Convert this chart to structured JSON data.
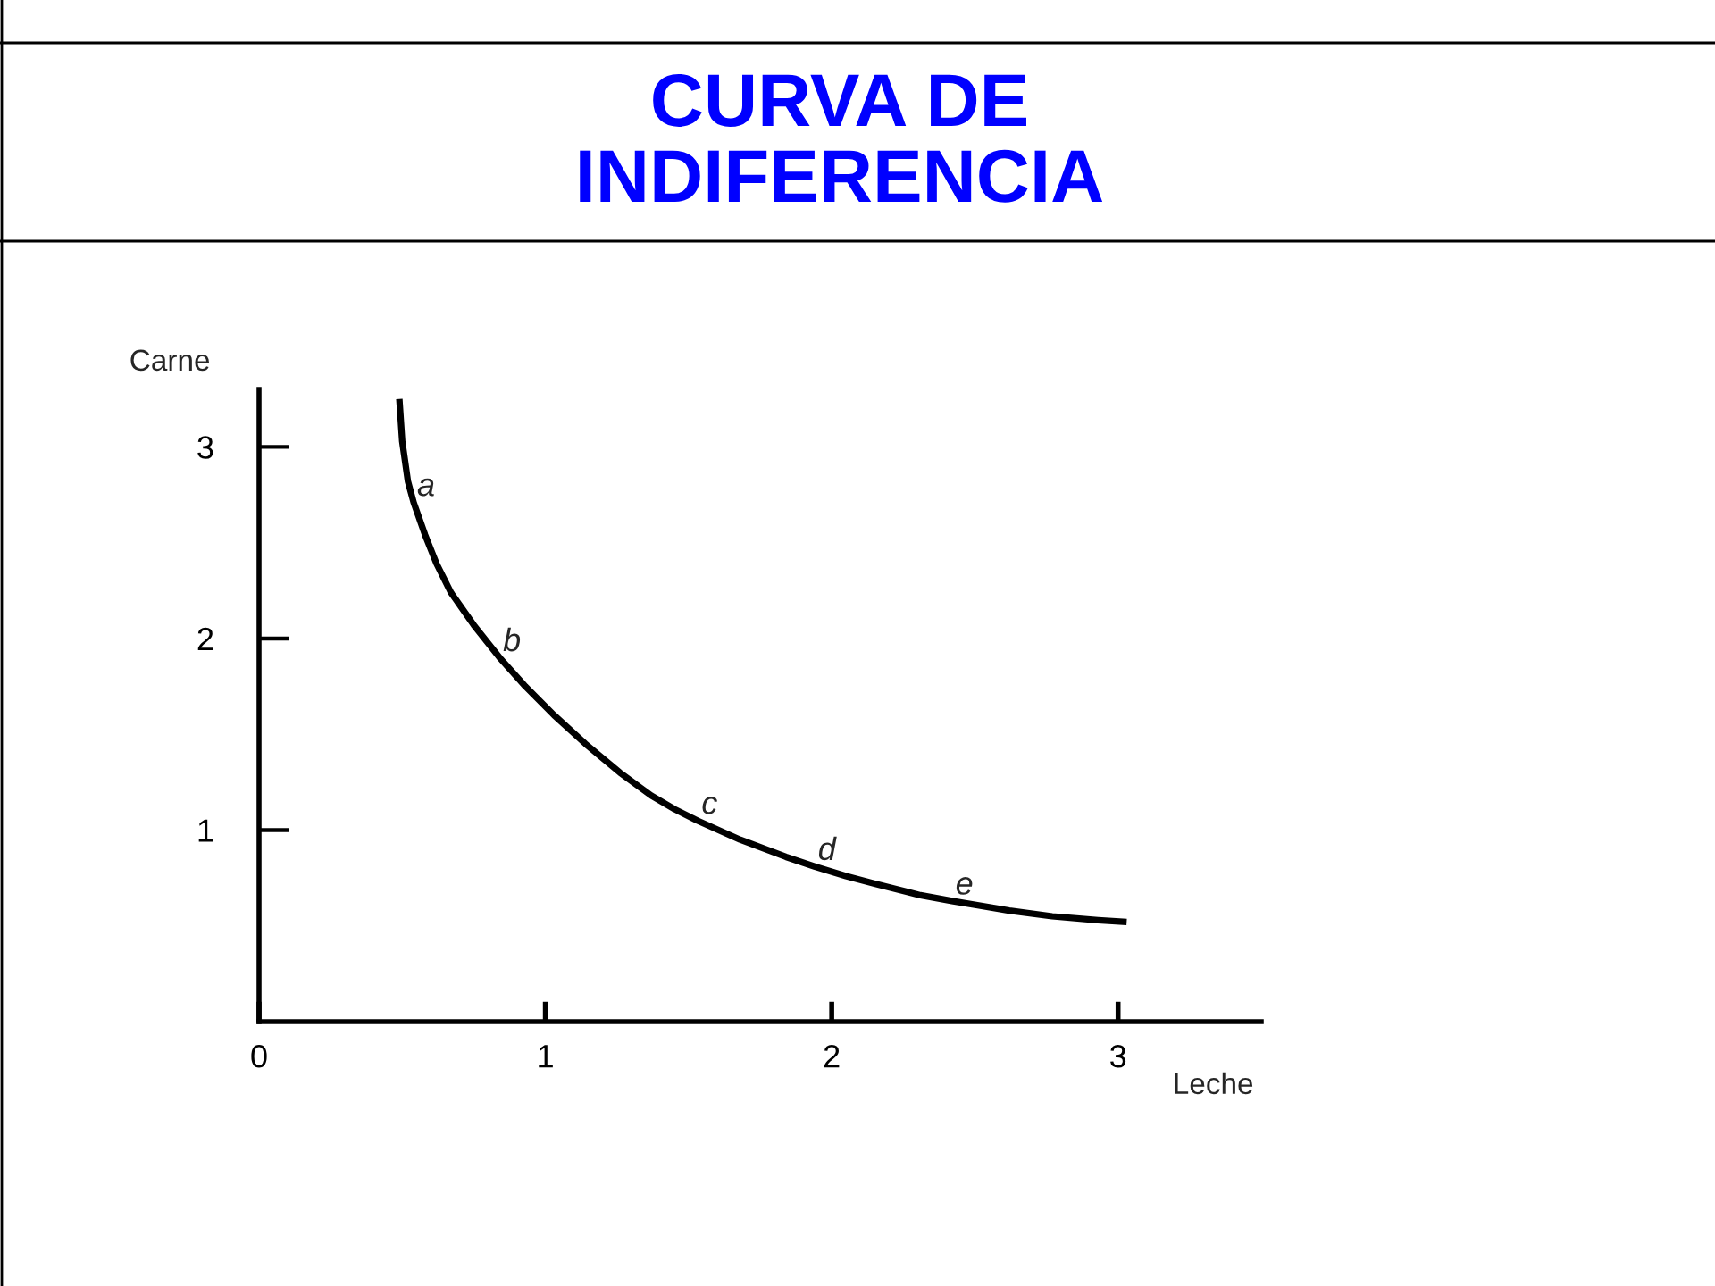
{
  "chart_data": {
    "type": "line",
    "title": "CURVA DE\nINDIFERENCIA",
    "xlabel": "Leche",
    "ylabel": "Carne",
    "x": [
      0.49,
      0.5,
      0.52,
      0.54,
      0.58,
      0.62,
      0.67,
      0.75,
      0.84,
      0.93,
      1.03,
      1.14,
      1.26,
      1.37,
      1.45,
      1.53,
      1.68,
      1.84,
      1.94,
      2.05,
      2.15,
      2.31,
      2.42,
      2.62,
      2.77,
      2.93,
      3.03
    ],
    "series": [
      {
        "color": "#000000",
        "values": [
          3.25,
          3.03,
          2.82,
          2.71,
          2.54,
          2.39,
          2.24,
          2.07,
          1.9,
          1.75,
          1.6,
          1.45,
          1.3,
          1.18,
          1.11,
          1.05,
          0.95,
          0.86,
          0.81,
          0.76,
          0.72,
          0.66,
          0.63,
          0.58,
          0.55,
          0.53,
          0.52
        ]
      }
    ],
    "xlim": [
      0,
      3.5
    ],
    "ylim": [
      0,
      3.3
    ],
    "xticks": [
      0,
      1,
      2,
      3
    ],
    "yticks": [
      1,
      2,
      3
    ],
    "annotations": [
      {
        "text": "a",
        "x": 0.54,
        "y": 2.71
      },
      {
        "text": "b",
        "x": 0.84,
        "y": 1.9
      },
      {
        "text": "c",
        "x": 1.53,
        "y": 1.05
      },
      {
        "text": "d",
        "x": 1.94,
        "y": 0.81
      },
      {
        "text": "e",
        "x": 2.42,
        "y": 0.63
      }
    ],
    "grid": false,
    "marker": "none",
    "line_style": "solid"
  }
}
